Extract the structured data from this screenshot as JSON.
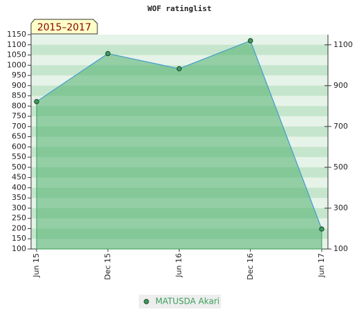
{
  "chart_data": {
    "type": "line",
    "title": "WOF ratinglist",
    "annotation": "2015–2017",
    "categories": [
      "Jun 15",
      "Dec 15",
      "Jun 16",
      "Dec 16",
      "Jun 17"
    ],
    "series": [
      {
        "name": "MATUSDA Akari",
        "color": "#3a9e5c",
        "values": [
          822,
          1057,
          983,
          1120,
          198
        ]
      }
    ],
    "ylim": [
      100,
      1150
    ],
    "yticks": [
      100,
      150,
      200,
      250,
      300,
      350,
      400,
      450,
      500,
      550,
      600,
      650,
      700,
      750,
      800,
      850,
      900,
      950,
      1000,
      1050,
      1100,
      1150
    ],
    "y2lim": [
      100,
      1150
    ],
    "y2ticks": [
      100,
      300,
      500,
      700,
      900,
      1100
    ],
    "legend": "bottom"
  }
}
